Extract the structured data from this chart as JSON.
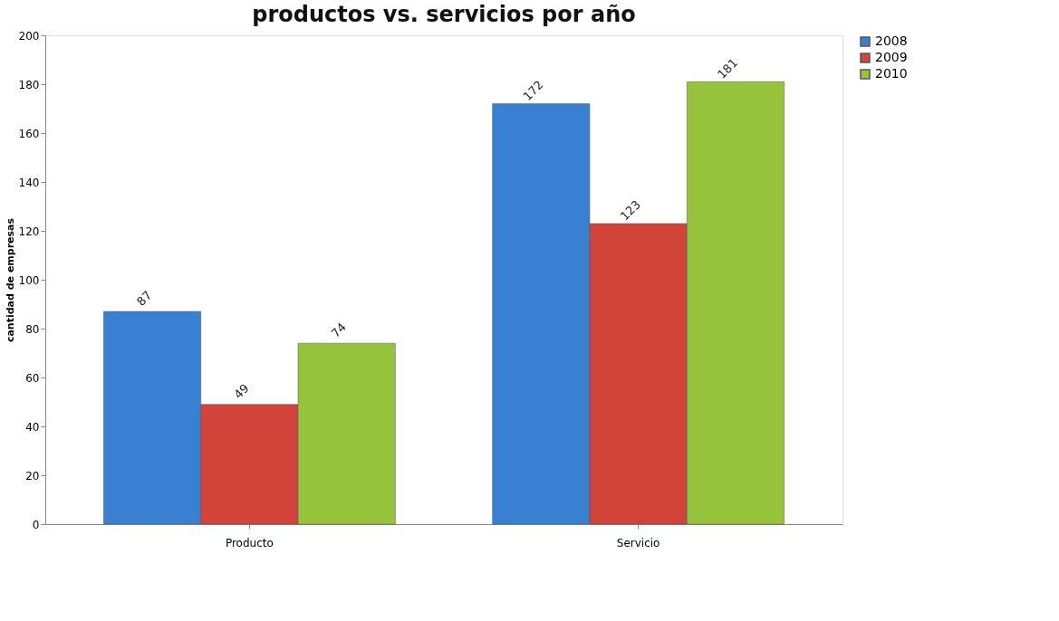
{
  "chart_data": {
    "type": "bar",
    "title": "productos vs. servicios por año",
    "ylabel": "cantidad de empresas",
    "categories": [
      "Producto",
      "Servicio"
    ],
    "series": [
      {
        "name": "2008",
        "color": "#3a80d2",
        "values": [
          87,
          172
        ]
      },
      {
        "name": "2009",
        "color": "#d2433a",
        "values": [
          49,
          123
        ]
      },
      {
        "name": "2010",
        "color": "#96c23c",
        "values": [
          74,
          181
        ]
      }
    ],
    "ylim": [
      0,
      200
    ],
    "yticks": [
      0,
      20,
      40,
      60,
      80,
      100,
      120,
      140,
      160,
      180,
      200
    ],
    "grid": false,
    "legend": "right",
    "data_labels": true
  }
}
